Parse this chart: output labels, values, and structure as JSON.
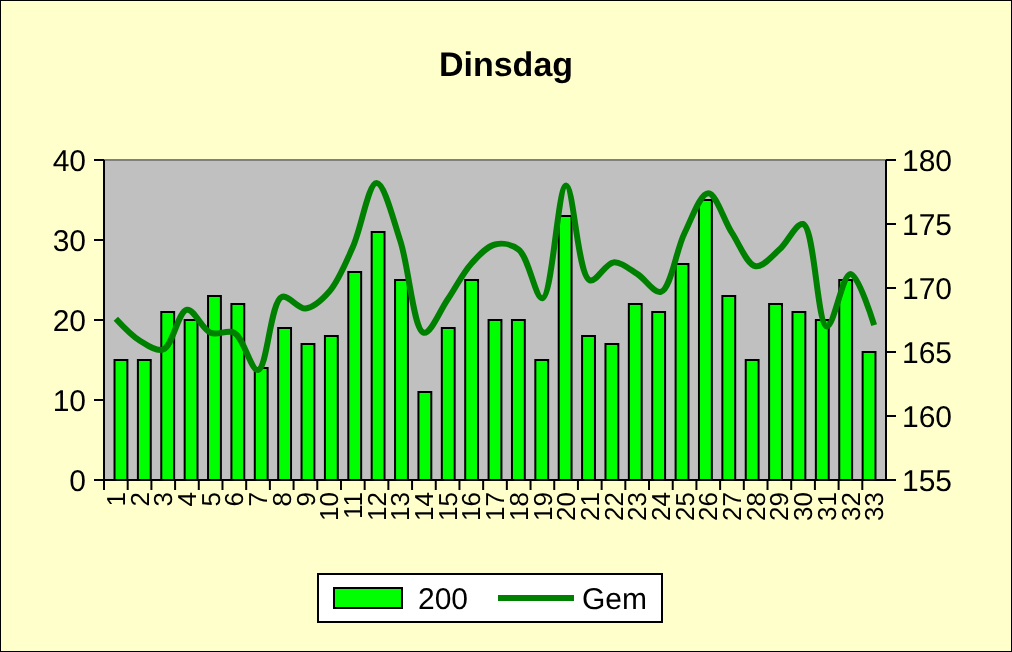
{
  "chart_data": {
    "type": "bar",
    "title": "Dinsdag",
    "categories": [
      "1",
      "2",
      "3",
      "4",
      "5",
      "6",
      "7",
      "8",
      "9",
      "10",
      "11",
      "12",
      "13",
      "14",
      "15",
      "16",
      "17",
      "18",
      "19",
      "20",
      "21",
      "22",
      "23",
      "24",
      "25",
      "26",
      "27",
      "28",
      "29",
      "30",
      "31",
      "32",
      "33"
    ],
    "series": [
      {
        "name": "200",
        "color": "#00ff00",
        "values": [
          15,
          15,
          21,
          20,
          23,
          22,
          14,
          19,
          17,
          18,
          26,
          31,
          25,
          11,
          19,
          25,
          20,
          20,
          15,
          33,
          18,
          17,
          22,
          21,
          27,
          35,
          23,
          15,
          22,
          21,
          20,
          25,
          16
        ]
      },
      {
        "name": "Gem",
        "type": "line",
        "axis": "y2",
        "color": "#008000",
        "values": [
          167.6,
          165.9,
          165.2,
          168.3,
          166.5,
          166.5,
          163.6,
          169.3,
          168.4,
          169.7,
          173.2,
          178.2,
          173.7,
          166.5,
          169.1,
          171.9,
          173.4,
          173,
          169.2,
          178,
          170.6,
          172,
          171.1,
          169.7,
          174.3,
          177.4,
          174.3,
          171.7,
          173,
          175,
          167,
          171.1,
          167.1
        ]
      }
    ],
    "ylim": [
      0,
      40
    ],
    "yticks": [
      0,
      10,
      20,
      30,
      40
    ],
    "y2lim": [
      155,
      180
    ],
    "y2ticks": [
      155,
      160,
      165,
      170,
      175,
      180
    ],
    "grid": false,
    "legend": "bottom",
    "line_style": "solid"
  }
}
